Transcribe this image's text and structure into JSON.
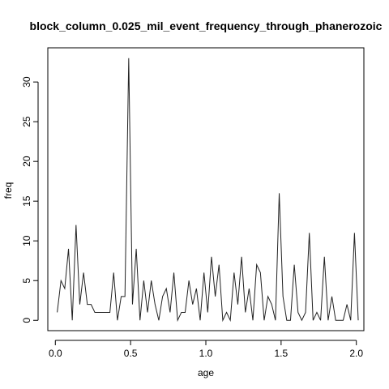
{
  "chart_data": {
    "type": "line",
    "title": "block_column_0.025_mil_event_frequency_through_phanerozoic",
    "xlabel": "age",
    "ylabel": "freq",
    "xlim": [
      -0.05,
      2.05
    ],
    "ylim": [
      -1.3,
      34.3
    ],
    "xticks": [
      0.0,
      0.5,
      1.0,
      1.5,
      2.0
    ],
    "xtick_labels": [
      "0.0",
      "0.5",
      "1.0",
      "1.5",
      "2.0"
    ],
    "yticks": [
      0,
      5,
      10,
      15,
      20,
      25,
      30
    ],
    "ytick_labels": [
      "0",
      "5",
      "10",
      "15",
      "20",
      "25",
      "30"
    ],
    "grid": false,
    "series": [
      {
        "color": "#222222",
        "x": [
          0.0125,
          0.0375,
          0.0625,
          0.0875,
          0.1125,
          0.1375,
          0.1625,
          0.1875,
          0.2125,
          0.2375,
          0.2625,
          0.2875,
          0.3125,
          0.3375,
          0.3625,
          0.3875,
          0.4125,
          0.4375,
          0.4625,
          0.4875,
          0.5125,
          0.5375,
          0.5625,
          0.5875,
          0.6125,
          0.6375,
          0.6625,
          0.6875,
          0.7125,
          0.7375,
          0.7625,
          0.7875,
          0.8125,
          0.8375,
          0.8625,
          0.8875,
          0.9125,
          0.9375,
          0.9625,
          0.9875,
          1.0125,
          1.0375,
          1.0625,
          1.0875,
          1.1125,
          1.1375,
          1.1625,
          1.1875,
          1.2125,
          1.2375,
          1.2625,
          1.2875,
          1.3125,
          1.3375,
          1.3625,
          1.3875,
          1.4125,
          1.4375,
          1.4625,
          1.4875,
          1.5125,
          1.5375,
          1.5625,
          1.5875,
          1.6125,
          1.6375,
          1.6625,
          1.6875,
          1.7125,
          1.7375,
          1.7625,
          1.7875,
          1.8125,
          1.8375,
          1.8625,
          1.8875,
          1.9125,
          1.9375,
          1.9625,
          1.9875,
          2.0125
        ],
        "y": [
          1,
          5,
          4,
          9,
          0,
          12,
          2,
          6,
          2,
          2,
          1,
          1,
          1,
          1,
          1,
          6,
          0,
          3,
          3,
          33,
          2,
          9,
          0,
          5,
          1,
          5,
          2,
          0,
          3,
          4,
          1,
          6,
          0,
          1,
          1,
          5,
          2,
          4,
          0,
          6,
          1,
          8,
          3,
          7,
          0,
          1,
          0,
          6,
          2,
          8,
          1,
          4,
          0,
          7,
          6,
          0,
          3,
          2,
          0,
          16,
          3,
          0,
          0,
          7,
          1,
          0,
          1,
          11,
          0,
          1,
          0,
          8,
          0,
          3,
          0,
          0,
          0,
          2,
          0,
          11,
          0
        ]
      }
    ]
  }
}
